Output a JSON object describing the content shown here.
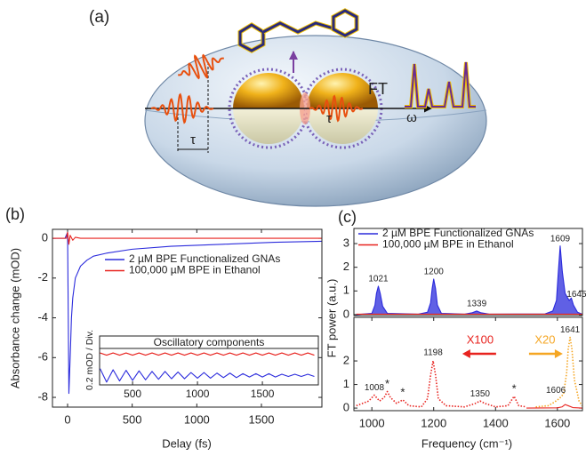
{
  "panel_a": {
    "label": "(a)",
    "ft": "FT",
    "tau_1": "τ",
    "tau_2": "τ",
    "omega": "ω"
  },
  "chart_data": [
    {
      "type": "line",
      "panel_label": "(b)",
      "xlabel": "Delay (fs)",
      "ylabel": "Absorbance change (mOD)",
      "xlim": [
        -117,
        1968
      ],
      "ylim": [
        -8.49,
        0.45
      ],
      "xticks": [
        0,
        500,
        1000,
        1500
      ],
      "yticks": [
        0,
        -2,
        -4,
        -6,
        -8
      ],
      "series": [
        {
          "name": "2 µM BPE Functionalized GNAs",
          "color": "#2b2bdc",
          "x": [
            -117,
            -20,
            0,
            10,
            20,
            30,
            40,
            60,
            100,
            150,
            200,
            300,
            500,
            800,
            1200,
            1600,
            1968
          ],
          "values": [
            0,
            0,
            0.3,
            -7.8,
            -6,
            -4,
            -3,
            -2,
            -1.4,
            -1.1,
            -0.9,
            -0.75,
            -0.55,
            -0.4,
            -0.3,
            -0.2,
            -0.15
          ]
        },
        {
          "name": "100,000 µM BPE in Ethanol",
          "color": "#e8231f",
          "x": [
            -117,
            -10,
            0,
            10,
            20,
            40,
            60,
            100,
            200,
            1968
          ],
          "values": [
            0,
            0,
            0.3,
            -0.3,
            0.15,
            -0.1,
            0.05,
            0,
            0,
            0
          ]
        }
      ]
    },
    {
      "type": "line",
      "title": "Oscillatory components",
      "ylabel": "0.2 mOD / Div.",
      "xlim": [
        246,
        1931
      ],
      "ylim": [
        -0.55,
        0.1
      ],
      "xticks": [
        500,
        1000,
        1500
      ],
      "series": [
        {
          "color": "#e8231f",
          "x": [
            250,
            300,
            350,
            400,
            450,
            500,
            550,
            600,
            650,
            700,
            750,
            800,
            850,
            900,
            950,
            1000,
            1050,
            1100,
            1150,
            1200,
            1250,
            1300,
            1350,
            1400,
            1450,
            1500,
            1550,
            1600,
            1650,
            1700,
            1750,
            1800,
            1850,
            1900
          ],
          "values": [
            0.02,
            -0.02,
            0.02,
            -0.02,
            0.02,
            -0.02,
            0.02,
            -0.02,
            0.02,
            -0.02,
            0.02,
            -0.02,
            0.02,
            -0.02,
            0.02,
            -0.02,
            0.02,
            -0.02,
            0.02,
            -0.02,
            0.02,
            -0.02,
            0.02,
            -0.02,
            0.02,
            -0.02,
            0.02,
            -0.02,
            0.02,
            -0.02,
            0.02,
            -0.02,
            0.02,
            -0.02
          ]
        },
        {
          "color": "#2b2bdc",
          "x": [
            250,
            300,
            350,
            400,
            450,
            500,
            550,
            600,
            650,
            700,
            750,
            800,
            850,
            900,
            950,
            1000,
            1050,
            1100,
            1150,
            1200,
            1250,
            1300,
            1350,
            1400,
            1450,
            1500,
            1550,
            1600,
            1650,
            1700,
            1750,
            1800,
            1850,
            1900
          ],
          "values": [
            -0.26,
            -0.5,
            -0.28,
            -0.48,
            -0.29,
            -0.47,
            -0.3,
            -0.46,
            -0.31,
            -0.45,
            -0.31,
            -0.44,
            -0.32,
            -0.44,
            -0.33,
            -0.43,
            -0.33,
            -0.43,
            -0.34,
            -0.42,
            -0.34,
            -0.42,
            -0.35,
            -0.41,
            -0.35,
            -0.41,
            -0.35,
            -0.41,
            -0.36,
            -0.4,
            -0.36,
            -0.4,
            -0.36,
            -0.4
          ]
        }
      ]
    },
    {
      "type": "line",
      "panel_label": "(c)",
      "ylabel": "FT power (a.u.)",
      "xlim": [
        942,
        1681
      ],
      "ylim": [
        -0.04,
        3.64
      ],
      "yticks": [
        0,
        1,
        2,
        3
      ],
      "series": [
        {
          "name": "2 µM BPE Functionalized GNAs",
          "color": "#2b2bdc",
          "fill": true,
          "x": [
            950,
            1000,
            1010,
            1015,
            1021,
            1027,
            1035,
            1050,
            1150,
            1180,
            1190,
            1195,
            1200,
            1206,
            1212,
            1225,
            1300,
            1325,
            1339,
            1352,
            1380,
            1560,
            1585,
            1597,
            1603,
            1609,
            1616,
            1625,
            1638,
            1645,
            1652,
            1665,
            1680
          ],
          "values": [
            0,
            0.05,
            0.4,
            0.9,
            1.2,
            0.9,
            0.35,
            0.05,
            0.02,
            0.1,
            0.5,
            1.1,
            1.5,
            1.1,
            0.4,
            0.05,
            0.02,
            0.08,
            0.15,
            0.08,
            0.02,
            0.03,
            0.15,
            0.6,
            1.8,
            2.9,
            1.8,
            0.9,
            0.6,
            0.7,
            0.4,
            0.1,
            0.02
          ]
        },
        {
          "name": "100,000 µM BPE in Ethanol",
          "color": "#e8231f",
          "x": [
            950,
            1680
          ],
          "values": [
            0.02,
            0.02
          ]
        }
      ],
      "annotations": [
        {
          "text": "1021",
          "x": 1021,
          "y": 1.5
        },
        {
          "text": "1200",
          "x": 1200,
          "y": 1.8
        },
        {
          "text": "1339",
          "x": 1339,
          "y": 0.45
        },
        {
          "text": "1609",
          "x": 1609,
          "y": 3.2
        },
        {
          "text": "1645",
          "x": 1662,
          "y": 0.85
        }
      ]
    },
    {
      "type": "line",
      "xlabel": "Frequency (cm⁻¹)",
      "xlim": [
        942,
        1681
      ],
      "ylim": [
        -0.11,
        3.85
      ],
      "xticks": [
        1000,
        1200,
        1400,
        1600
      ],
      "yticks": [
        0,
        1,
        2
      ],
      "series": [
        {
          "color": "#e8231f",
          "style": "dotted",
          "x": [
            950,
            990,
            1008,
            1025,
            1040,
            1050,
            1060,
            1080,
            1100,
            1120,
            1160,
            1180,
            1190,
            1198,
            1206,
            1215,
            1240,
            1300,
            1335,
            1350,
            1365,
            1400,
            1440,
            1460,
            1475,
            1500
          ],
          "values": [
            0.1,
            0.3,
            0.55,
            0.3,
            0.45,
            0.7,
            0.45,
            0.2,
            0.35,
            0.1,
            0.05,
            0.4,
            1.4,
            2.0,
            1.4,
            0.4,
            0.1,
            0.05,
            0.2,
            0.3,
            0.2,
            0.05,
            0.1,
            0.5,
            0.1,
            0.05
          ]
        },
        {
          "color": "#f5a623",
          "style": "dotted",
          "x": [
            1530,
            1570,
            1590,
            1606,
            1620,
            1630,
            1635,
            1641,
            1647,
            1655,
            1670,
            1680
          ],
          "values": [
            0.05,
            0.1,
            0.25,
            0.4,
            0.6,
            1.5,
            2.5,
            3.0,
            2.5,
            1.2,
            0.3,
            0.1
          ]
        },
        {
          "color": "#e8231f",
          "x": [
            1500,
            1600,
            1615,
            1625,
            1635,
            1650,
            1680
          ],
          "values": [
            0,
            0.01,
            0.05,
            0.15,
            0.1,
            0.02,
            0
          ]
        }
      ],
      "annotations": [
        {
          "text": "1008",
          "x": 1008,
          "y": 0.85
        },
        {
          "text": "*",
          "x": 1050,
          "y": 1.0
        },
        {
          "text": "*",
          "x": 1100,
          "y": 0.65
        },
        {
          "text": "1198",
          "x": 1198,
          "y": 2.35
        },
        {
          "text": "1350",
          "x": 1350,
          "y": 0.6
        },
        {
          "text": "*",
          "x": 1460,
          "y": 0.8
        },
        {
          "text": "1606",
          "x": 1595,
          "y": 0.75
        },
        {
          "text": "1641",
          "x": 1641,
          "y": 3.3
        },
        {
          "text": "X100",
          "x": 1350,
          "y": 2.87,
          "color": "#e8231f"
        },
        {
          "text": "X20",
          "x": 1560,
          "y": 2.87,
          "color": "#f5a623"
        }
      ]
    }
  ]
}
